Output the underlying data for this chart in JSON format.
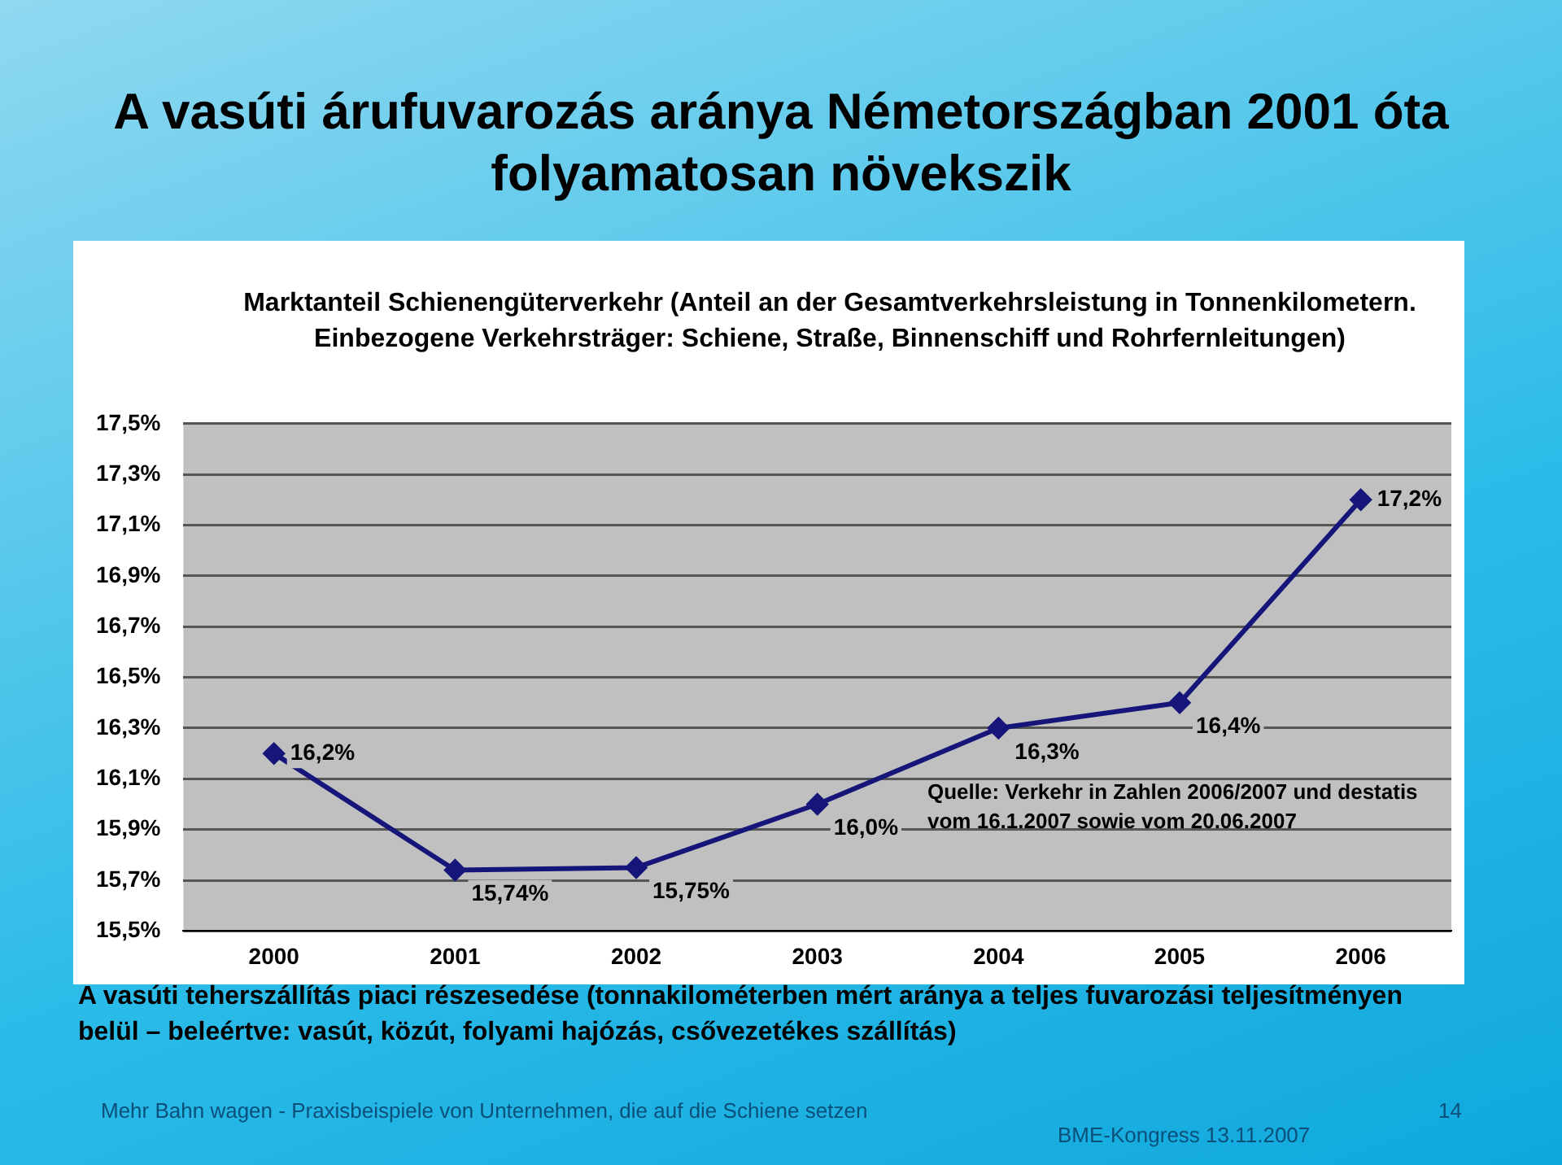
{
  "chart_data": {
    "type": "line",
    "title": "A vasúti árufuvarozás aránya Németországban 2001 óta folyamatosan növekszik",
    "subtitle": "Marktanteil Schienengüterverkehr (Anteil an der Gesamtverkehrsleistung in Tonnenkilometern. Einbezogene Verkehrsträger: Schiene, Straße, Binnenschiff und Rohrfernleitungen)",
    "categories": [
      "2000",
      "2001",
      "2002",
      "2003",
      "2004",
      "2005",
      "2006"
    ],
    "series": [
      {
        "color": "#16167a",
        "values": [
          16.2,
          15.74,
          15.75,
          16.0,
          16.3,
          16.4,
          17.2
        ],
        "value_labels": [
          "16,2%",
          "15,74%",
          "15,75%",
          "16,0%",
          "16,3%",
          "16,4%",
          "17,2%"
        ]
      }
    ],
    "ylim": [
      15.5,
      17.5
    ],
    "yticks": [
      {
        "value": 15.5,
        "label": "15,5%"
      },
      {
        "value": 15.7,
        "label": "15,7%"
      },
      {
        "value": 15.9,
        "label": "15,9%"
      },
      {
        "value": 16.1,
        "label": "16,1%"
      },
      {
        "value": 16.3,
        "label": "16,3%"
      },
      {
        "value": 16.5,
        "label": "16,5%"
      },
      {
        "value": 16.7,
        "label": "16,7%"
      },
      {
        "value": 16.9,
        "label": "16,9%"
      },
      {
        "value": 17.1,
        "label": "17,1%"
      },
      {
        "value": 17.3,
        "label": "17,3%"
      },
      {
        "value": 17.5,
        "label": "17,5%"
      }
    ],
    "grid": "y",
    "legend": false,
    "marker": "diamond",
    "line_style": "solid",
    "annotations": [
      "Quelle: Verkehr in Zahlen 2006/2007 und destatis vom 16.1.2007 sowie vom 20.06.2007",
      "A vasúti teherszállítás piaci részesedése (tonnakilométerben mért aránya a teljes fuvarozási teljesítményen belül – beleértve: vasút, közút, folyami hajózás, csővezetékes szállítás)",
      "Mehr Bahn wagen - Praxisbeispiele von Unternehmen, die auf die Schiene setzen",
      "BME-Kongress 13.11.2007",
      "14"
    ]
  }
}
